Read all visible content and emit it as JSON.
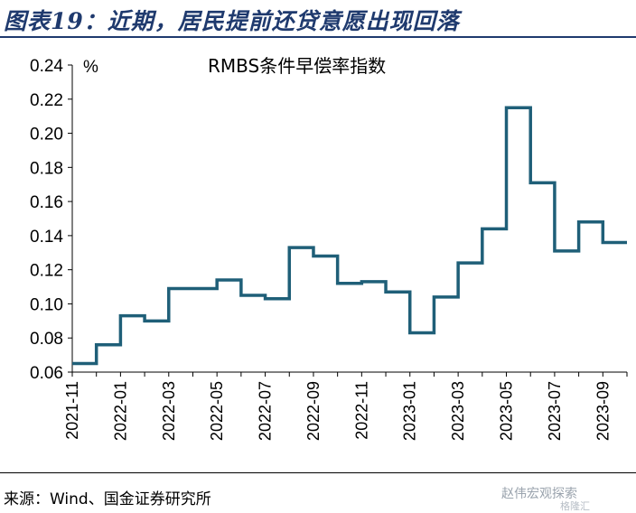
{
  "figure": {
    "title": "图表19：近期，居民提前还贷意愿出现回落",
    "source": "来源：Wind、国金证券研究所",
    "watermark": "赵伟宏观探索",
    "watermark_sub": "格隆汇"
  },
  "chart_data": {
    "type": "line",
    "step": true,
    "title": "RMBS条件早偿率指数",
    "ylabel": "%",
    "xlabel": "",
    "ylim": [
      0.06,
      0.24
    ],
    "yticks": [
      "0.06",
      "0.08",
      "0.10",
      "0.12",
      "0.14",
      "0.16",
      "0.18",
      "0.20",
      "0.22",
      "0.24"
    ],
    "xticks": [
      "2021-11",
      "2022-01",
      "2022-03",
      "2022-05",
      "2022-07",
      "2022-09",
      "2022-11",
      "2023-01",
      "2023-03",
      "2023-05",
      "2023-07",
      "2023-09"
    ],
    "x": [
      "2021-11",
      "2021-12",
      "2022-01",
      "2022-02",
      "2022-03",
      "2022-04",
      "2022-05",
      "2022-06",
      "2022-07",
      "2022-08",
      "2022-09",
      "2022-10",
      "2022-11",
      "2022-12",
      "2023-01",
      "2023-02",
      "2023-03",
      "2023-04",
      "2023-05",
      "2023-06",
      "2023-07",
      "2023-08",
      "2023-09"
    ],
    "series": [
      {
        "name": "",
        "color": "#1f5f78",
        "values": [
          0.065,
          0.076,
          0.093,
          0.09,
          0.109,
          0.109,
          0.114,
          0.105,
          0.103,
          0.133,
          0.128,
          0.112,
          0.113,
          0.107,
          0.083,
          0.104,
          0.124,
          0.144,
          0.215,
          0.171,
          0.131,
          0.148,
          0.136
        ]
      }
    ],
    "grid": false,
    "legend": "none"
  }
}
